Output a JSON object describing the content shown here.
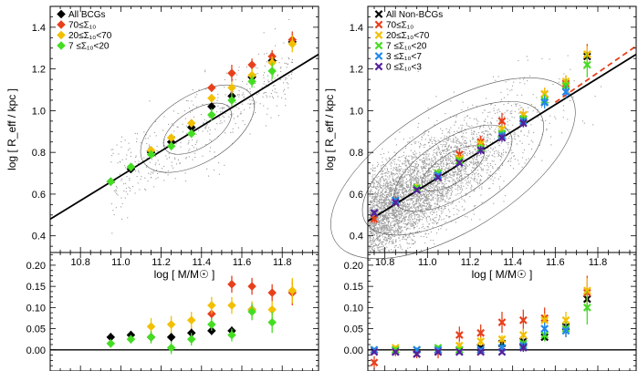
{
  "chart_data": [
    {
      "type": "scatter",
      "panel": "top-left",
      "ylabel": "log [ R_eff / kpc ]",
      "xlabel": "log [ M/M☉ ]",
      "xlim": [
        10.65,
        11.98
      ],
      "ylim": [
        0.32,
        1.5
      ],
      "yticks": [
        "0.4",
        "0.6",
        "0.8",
        "1.0",
        "1.2",
        "1.4"
      ],
      "xticks": [
        "10.8",
        "11.0",
        "11.2",
        "11.4",
        "11.6",
        "11.8"
      ],
      "legend_position": "top-left",
      "fit_line": {
        "x": [
          10.65,
          11.98
        ],
        "y": [
          0.48,
          1.27
        ]
      },
      "series": [
        {
          "name": "All BCGs",
          "color": "#000000",
          "x": [
            10.95,
            11.05,
            11.15,
            11.25,
            11.35,
            11.45,
            11.55,
            11.65,
            11.75,
            11.85
          ],
          "y": [
            0.66,
            0.72,
            0.8,
            0.85,
            0.92,
            1.02,
            1.07,
            1.16,
            1.24,
            1.33
          ],
          "err": [
            0.01,
            0.01,
            0.01,
            0.01,
            0.01,
            0.01,
            0.02,
            0.02,
            0.02,
            0.02
          ]
        },
        {
          "name": "70≤Σ₁₀",
          "color": "#e8401c",
          "x": [
            11.45,
            11.55,
            11.65,
            11.75,
            11.85
          ],
          "y": [
            1.11,
            1.18,
            1.22,
            1.26,
            1.34
          ],
          "err": [
            0.02,
            0.04,
            0.03,
            0.03,
            0.04
          ]
        },
        {
          "name": "20≤Σ₁₀<70",
          "color": "#f2c000",
          "x": [
            11.15,
            11.25,
            11.35,
            11.45,
            11.55,
            11.65,
            11.75,
            11.85
          ],
          "y": [
            0.81,
            0.87,
            0.94,
            1.06,
            1.11,
            1.17,
            1.23,
            1.32
          ],
          "err": [
            0.02,
            0.02,
            0.02,
            0.02,
            0.03,
            0.03,
            0.03,
            0.04
          ]
        },
        {
          "name": "7 ≤Σ₁₀<20",
          "color": "#44dd22",
          "x": [
            10.95,
            11.05,
            11.15,
            11.25,
            11.35,
            11.45,
            11.55,
            11.65,
            11.75
          ],
          "y": [
            0.66,
            0.73,
            0.79,
            0.83,
            0.89,
            0.98,
            1.05,
            1.14,
            1.19
          ],
          "err": [
            0.01,
            0.02,
            0.02,
            0.02,
            0.02,
            0.03,
            0.03,
            0.03,
            0.04
          ]
        }
      ]
    },
    {
      "type": "scatter",
      "panel": "top-right",
      "ylabel": "log [ R_eff / kpc ]",
      "xlabel": "log [ M/M☉ ]",
      "xlim": [
        10.72,
        11.98
      ],
      "ylim": [
        0.32,
        1.5
      ],
      "yticks": [
        "0.4",
        "0.6",
        "0.8",
        "1.0",
        "1.2",
        "1.4"
      ],
      "xticks": [
        "10.8",
        "11.0",
        "11.2",
        "11.4",
        "11.6",
        "11.8"
      ],
      "legend_position": "top-left",
      "fit_line": {
        "x": [
          10.72,
          11.98
        ],
        "y": [
          0.47,
          1.27
        ]
      },
      "dashed_line": {
        "x": [
          11.6,
          11.98
        ],
        "y": [
          1.04,
          1.31
        ]
      },
      "series": [
        {
          "name": "All Non-BCGs",
          "color": "#000000",
          "x": [
            10.75,
            10.85,
            10.95,
            11.05,
            11.15,
            11.25,
            11.35,
            11.45,
            11.55,
            11.65,
            11.75
          ],
          "y": [
            0.51,
            0.57,
            0.63,
            0.69,
            0.76,
            0.82,
            0.89,
            0.96,
            1.04,
            1.12,
            1.26
          ],
          "err": [
            0.01,
            0.01,
            0.01,
            0.01,
            0.01,
            0.01,
            0.01,
            0.01,
            0.01,
            0.02,
            0.03
          ]
        },
        {
          "name": "70≤Σ₁₀",
          "color": "#e8401c",
          "x": [
            10.75,
            10.85,
            10.95,
            11.05,
            11.15,
            11.25,
            11.35,
            11.45,
            11.55,
            11.65,
            11.75
          ],
          "y": [
            0.48,
            0.57,
            0.63,
            0.7,
            0.79,
            0.85,
            0.95,
            0.98,
            1.08,
            1.13,
            1.27
          ],
          "err": [
            0.02,
            0.02,
            0.02,
            0.02,
            0.03,
            0.03,
            0.04,
            0.03,
            0.03,
            0.04,
            0.05
          ]
        },
        {
          "name": "20≤Σ₁₀<70",
          "color": "#f2c000",
          "x": [
            10.75,
            10.85,
            10.95,
            11.05,
            11.15,
            11.25,
            11.35,
            11.45,
            11.55,
            11.65,
            11.75
          ],
          "y": [
            0.51,
            0.57,
            0.63,
            0.7,
            0.77,
            0.84,
            0.91,
            0.98,
            1.08,
            1.14,
            1.27
          ],
          "err": [
            0.01,
            0.01,
            0.02,
            0.02,
            0.02,
            0.02,
            0.02,
            0.03,
            0.03,
            0.03,
            0.04
          ]
        },
        {
          "name": "7 ≤Σ₁₀<20",
          "color": "#44dd22",
          "x": [
            10.75,
            10.85,
            10.95,
            11.05,
            11.15,
            11.25,
            11.35,
            11.45,
            11.55,
            11.65,
            11.75
          ],
          "y": [
            0.51,
            0.57,
            0.63,
            0.7,
            0.76,
            0.82,
            0.89,
            0.96,
            1.05,
            1.12,
            1.22
          ],
          "err": [
            0.01,
            0.01,
            0.01,
            0.02,
            0.02,
            0.02,
            0.02,
            0.02,
            0.03,
            0.03,
            0.06
          ]
        },
        {
          "name": "3 ≤Σ₁₀<7",
          "color": "#2288ee",
          "x": [
            10.75,
            10.85,
            10.95,
            11.05,
            11.15,
            11.25,
            11.35,
            11.45,
            11.55,
            11.65
          ],
          "y": [
            0.51,
            0.57,
            0.62,
            0.69,
            0.75,
            0.81,
            0.88,
            0.95,
            1.04,
            1.09
          ],
          "err": [
            0.01,
            0.01,
            0.01,
            0.01,
            0.01,
            0.02,
            0.02,
            0.02,
            0.03,
            0.03
          ]
        },
        {
          "name": "0 ≤Σ₁₀<3",
          "color": "#552299",
          "x": [
            10.75,
            10.85,
            10.95,
            11.05,
            11.15,
            11.25,
            11.35,
            11.45
          ],
          "y": [
            0.51,
            0.56,
            0.62,
            0.68,
            0.75,
            0.81,
            0.87,
            0.94
          ],
          "err": [
            0.01,
            0.01,
            0.01,
            0.01,
            0.01,
            0.02,
            0.02,
            0.02
          ]
        }
      ]
    },
    {
      "type": "scatter",
      "panel": "bottom-left",
      "xlim": [
        10.65,
        11.98
      ],
      "ylim": [
        -0.05,
        0.23
      ],
      "yticks": [
        "0.00",
        "0.05",
        "0.10",
        "0.15",
        "0.20"
      ],
      "zero_line": 0,
      "series": [
        {
          "name": "All BCGs",
          "color": "#000000",
          "x": [
            10.95,
            11.05,
            11.15,
            11.25,
            11.35,
            11.45,
            11.55,
            11.65
          ],
          "y": [
            0.03,
            0.035,
            0.03,
            0.03,
            0.04,
            0.045,
            0.045,
            0.095
          ],
          "err": [
            0.01,
            0.01,
            0.01,
            0.01,
            0.01,
            0.01,
            0.01,
            0.01
          ]
        },
        {
          "name": "70≤Σ₁₀",
          "color": "#e8401c",
          "x": [
            11.45,
            11.55,
            11.65,
            11.75,
            11.85
          ],
          "y": [
            0.085,
            0.155,
            0.15,
            0.135,
            0.135
          ],
          "err": [
            0.02,
            0.02,
            0.02,
            0.02,
            0.03
          ]
        },
        {
          "name": "20≤Σ₁₀<70",
          "color": "#f2c000",
          "x": [
            11.15,
            11.25,
            11.35,
            11.45,
            11.55,
            11.65,
            11.75,
            11.85
          ],
          "y": [
            0.055,
            0.06,
            0.07,
            0.105,
            0.105,
            0.095,
            0.095,
            0.14
          ],
          "err": [
            0.02,
            0.02,
            0.02,
            0.02,
            0.02,
            0.02,
            0.02,
            0.03
          ]
        },
        {
          "name": "7 ≤Σ₁₀<20",
          "color": "#44dd22",
          "x": [
            10.95,
            11.05,
            11.15,
            11.25,
            11.35,
            11.45,
            11.55,
            11.65,
            11.75
          ],
          "y": [
            0.015,
            0.025,
            0.03,
            0.005,
            0.025,
            0.06,
            0.035,
            0.09,
            0.065
          ],
          "err": [
            0.01,
            0.01,
            0.015,
            0.015,
            0.015,
            0.015,
            0.015,
            0.02,
            0.025
          ]
        }
      ]
    },
    {
      "type": "scatter",
      "panel": "bottom-right",
      "xlim": [
        10.72,
        11.98
      ],
      "ylim": [
        -0.05,
        0.23
      ],
      "yticks": [
        "0.00",
        "0.05",
        "0.10",
        "0.15",
        "0.20"
      ],
      "zero_line": 0,
      "series": [
        {
          "name": "All Non-BCGs",
          "color": "#000000",
          "x": [
            10.75,
            10.85,
            10.95,
            11.05,
            11.15,
            11.25,
            11.35,
            11.45,
            11.55,
            11.65,
            11.75
          ],
          "y": [
            0.0,
            0.0,
            0.0,
            0.0,
            0.0,
            0.005,
            0.015,
            0.02,
            0.03,
            0.055,
            0.12
          ],
          "err": [
            0.005,
            0.005,
            0.005,
            0.005,
            0.005,
            0.005,
            0.005,
            0.01,
            0.01,
            0.015,
            0.03
          ]
        },
        {
          "name": "70≤Σ₁₀",
          "color": "#e8401c",
          "x": [
            10.75,
            10.85,
            10.95,
            11.05,
            11.15,
            11.25,
            11.35,
            11.45,
            11.55,
            11.65,
            11.75
          ],
          "y": [
            -0.03,
            -0.005,
            -0.01,
            -0.005,
            0.035,
            0.04,
            0.065,
            0.07,
            0.075,
            0.05,
            0.135
          ],
          "err": [
            0.015,
            0.01,
            0.01,
            0.015,
            0.02,
            0.02,
            0.025,
            0.025,
            0.025,
            0.02,
            0.04
          ]
        },
        {
          "name": "20≤Σ₁₀<70",
          "color": "#f2c000",
          "x": [
            10.75,
            10.85,
            10.95,
            11.05,
            11.15,
            11.25,
            11.35,
            11.45,
            11.55,
            11.65,
            11.75
          ],
          "y": [
            0.0,
            0.005,
            0.0,
            0.0,
            0.01,
            0.02,
            0.025,
            0.035,
            0.07,
            0.07,
            0.14
          ],
          "err": [
            0.005,
            0.005,
            0.005,
            0.005,
            0.01,
            0.01,
            0.01,
            0.015,
            0.015,
            0.02,
            0.03
          ]
        },
        {
          "name": "7 ≤Σ₁₀<20",
          "color": "#44dd22",
          "x": [
            10.75,
            10.85,
            10.95,
            11.05,
            11.15,
            11.25,
            11.35,
            11.45,
            11.55,
            11.65,
            11.75
          ],
          "y": [
            0.0,
            0.0,
            0.0,
            0.005,
            0.0,
            0.0,
            0.005,
            0.015,
            0.035,
            0.05,
            0.1
          ],
          "err": [
            0.005,
            0.005,
            0.005,
            0.005,
            0.005,
            0.005,
            0.01,
            0.01,
            0.015,
            0.015,
            0.04
          ]
        },
        {
          "name": "3 ≤Σ₁₀<7",
          "color": "#2288ee",
          "x": [
            10.75,
            10.85,
            10.95,
            11.05,
            11.15,
            11.25,
            11.35,
            11.45,
            11.55,
            11.65
          ],
          "y": [
            0.0,
            -0.005,
            0.0,
            0.0,
            -0.005,
            0.0,
            0.005,
            0.01,
            0.05,
            0.045
          ],
          "err": [
            0.005,
            0.005,
            0.005,
            0.005,
            0.005,
            0.005,
            0.01,
            0.01,
            0.015,
            0.015
          ]
        },
        {
          "name": "0 ≤Σ₁₀<3",
          "color": "#552299",
          "x": [
            10.75,
            10.85,
            10.95,
            11.05,
            11.15,
            11.25,
            11.35,
            11.45
          ],
          "y": [
            -0.005,
            -0.005,
            -0.01,
            -0.005,
            -0.005,
            -0.005,
            -0.005,
            0.005
          ],
          "err": [
            0.005,
            0.005,
            0.005,
            0.005,
            0.005,
            0.005,
            0.005,
            0.01
          ]
        }
      ]
    }
  ]
}
